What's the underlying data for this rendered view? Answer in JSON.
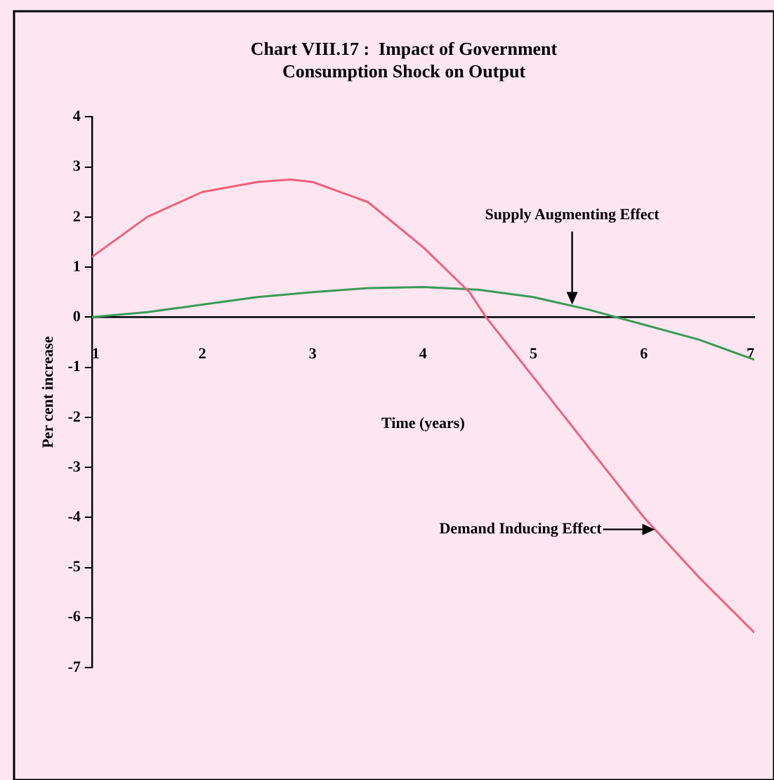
{
  "chart_data": {
    "type": "line",
    "title": [
      "Chart VIII.17 :  Impact of Government",
      "Consumption Shock on Output"
    ],
    "xlabel": "Time (years)",
    "ylabel": "Per cent increase",
    "xlim": [
      1,
      7
    ],
    "xticks": [
      1,
      2,
      3,
      4,
      5,
      6,
      7
    ],
    "ylim": [
      -7,
      4
    ],
    "yticks": [
      -7,
      -6,
      -5,
      -4,
      -3,
      -2,
      -1,
      0,
      1,
      2,
      3,
      4
    ],
    "grid": false,
    "legend": false,
    "marker": "none",
    "line_style": "solid",
    "series": [
      {
        "color": "#f06080",
        "x": [
          1,
          1.5,
          2,
          2.5,
          2.8,
          3,
          3.5,
          4,
          4.42,
          4.57,
          5,
          5.5,
          6,
          6.5,
          7
        ],
        "values": [
          1.2,
          2.0,
          2.5,
          2.7,
          2.75,
          2.7,
          2.3,
          1.4,
          0.5,
          0,
          -1.2,
          -2.6,
          -4.0,
          -5.2,
          -6.3
        ]
      },
      {
        "color": "#3a9a5a",
        "x": [
          1,
          1.5,
          2,
          2.5,
          3,
          3.5,
          4,
          4.5,
          5,
          5.5,
          5.75,
          6,
          6.5,
          7
        ],
        "values": [
          0,
          0.1,
          0.25,
          0.4,
          0.5,
          0.58,
          0.6,
          0.55,
          0.4,
          0.15,
          0,
          -0.15,
          -0.45,
          -0.85
        ]
      }
    ],
    "annotations": [
      {
        "text": "Supply Augmenting Effect",
        "x": 5.35,
        "y": 0.25
      },
      {
        "text": "Demand Inducing Effect",
        "x": 6.1,
        "y": -4.24
      }
    ]
  }
}
